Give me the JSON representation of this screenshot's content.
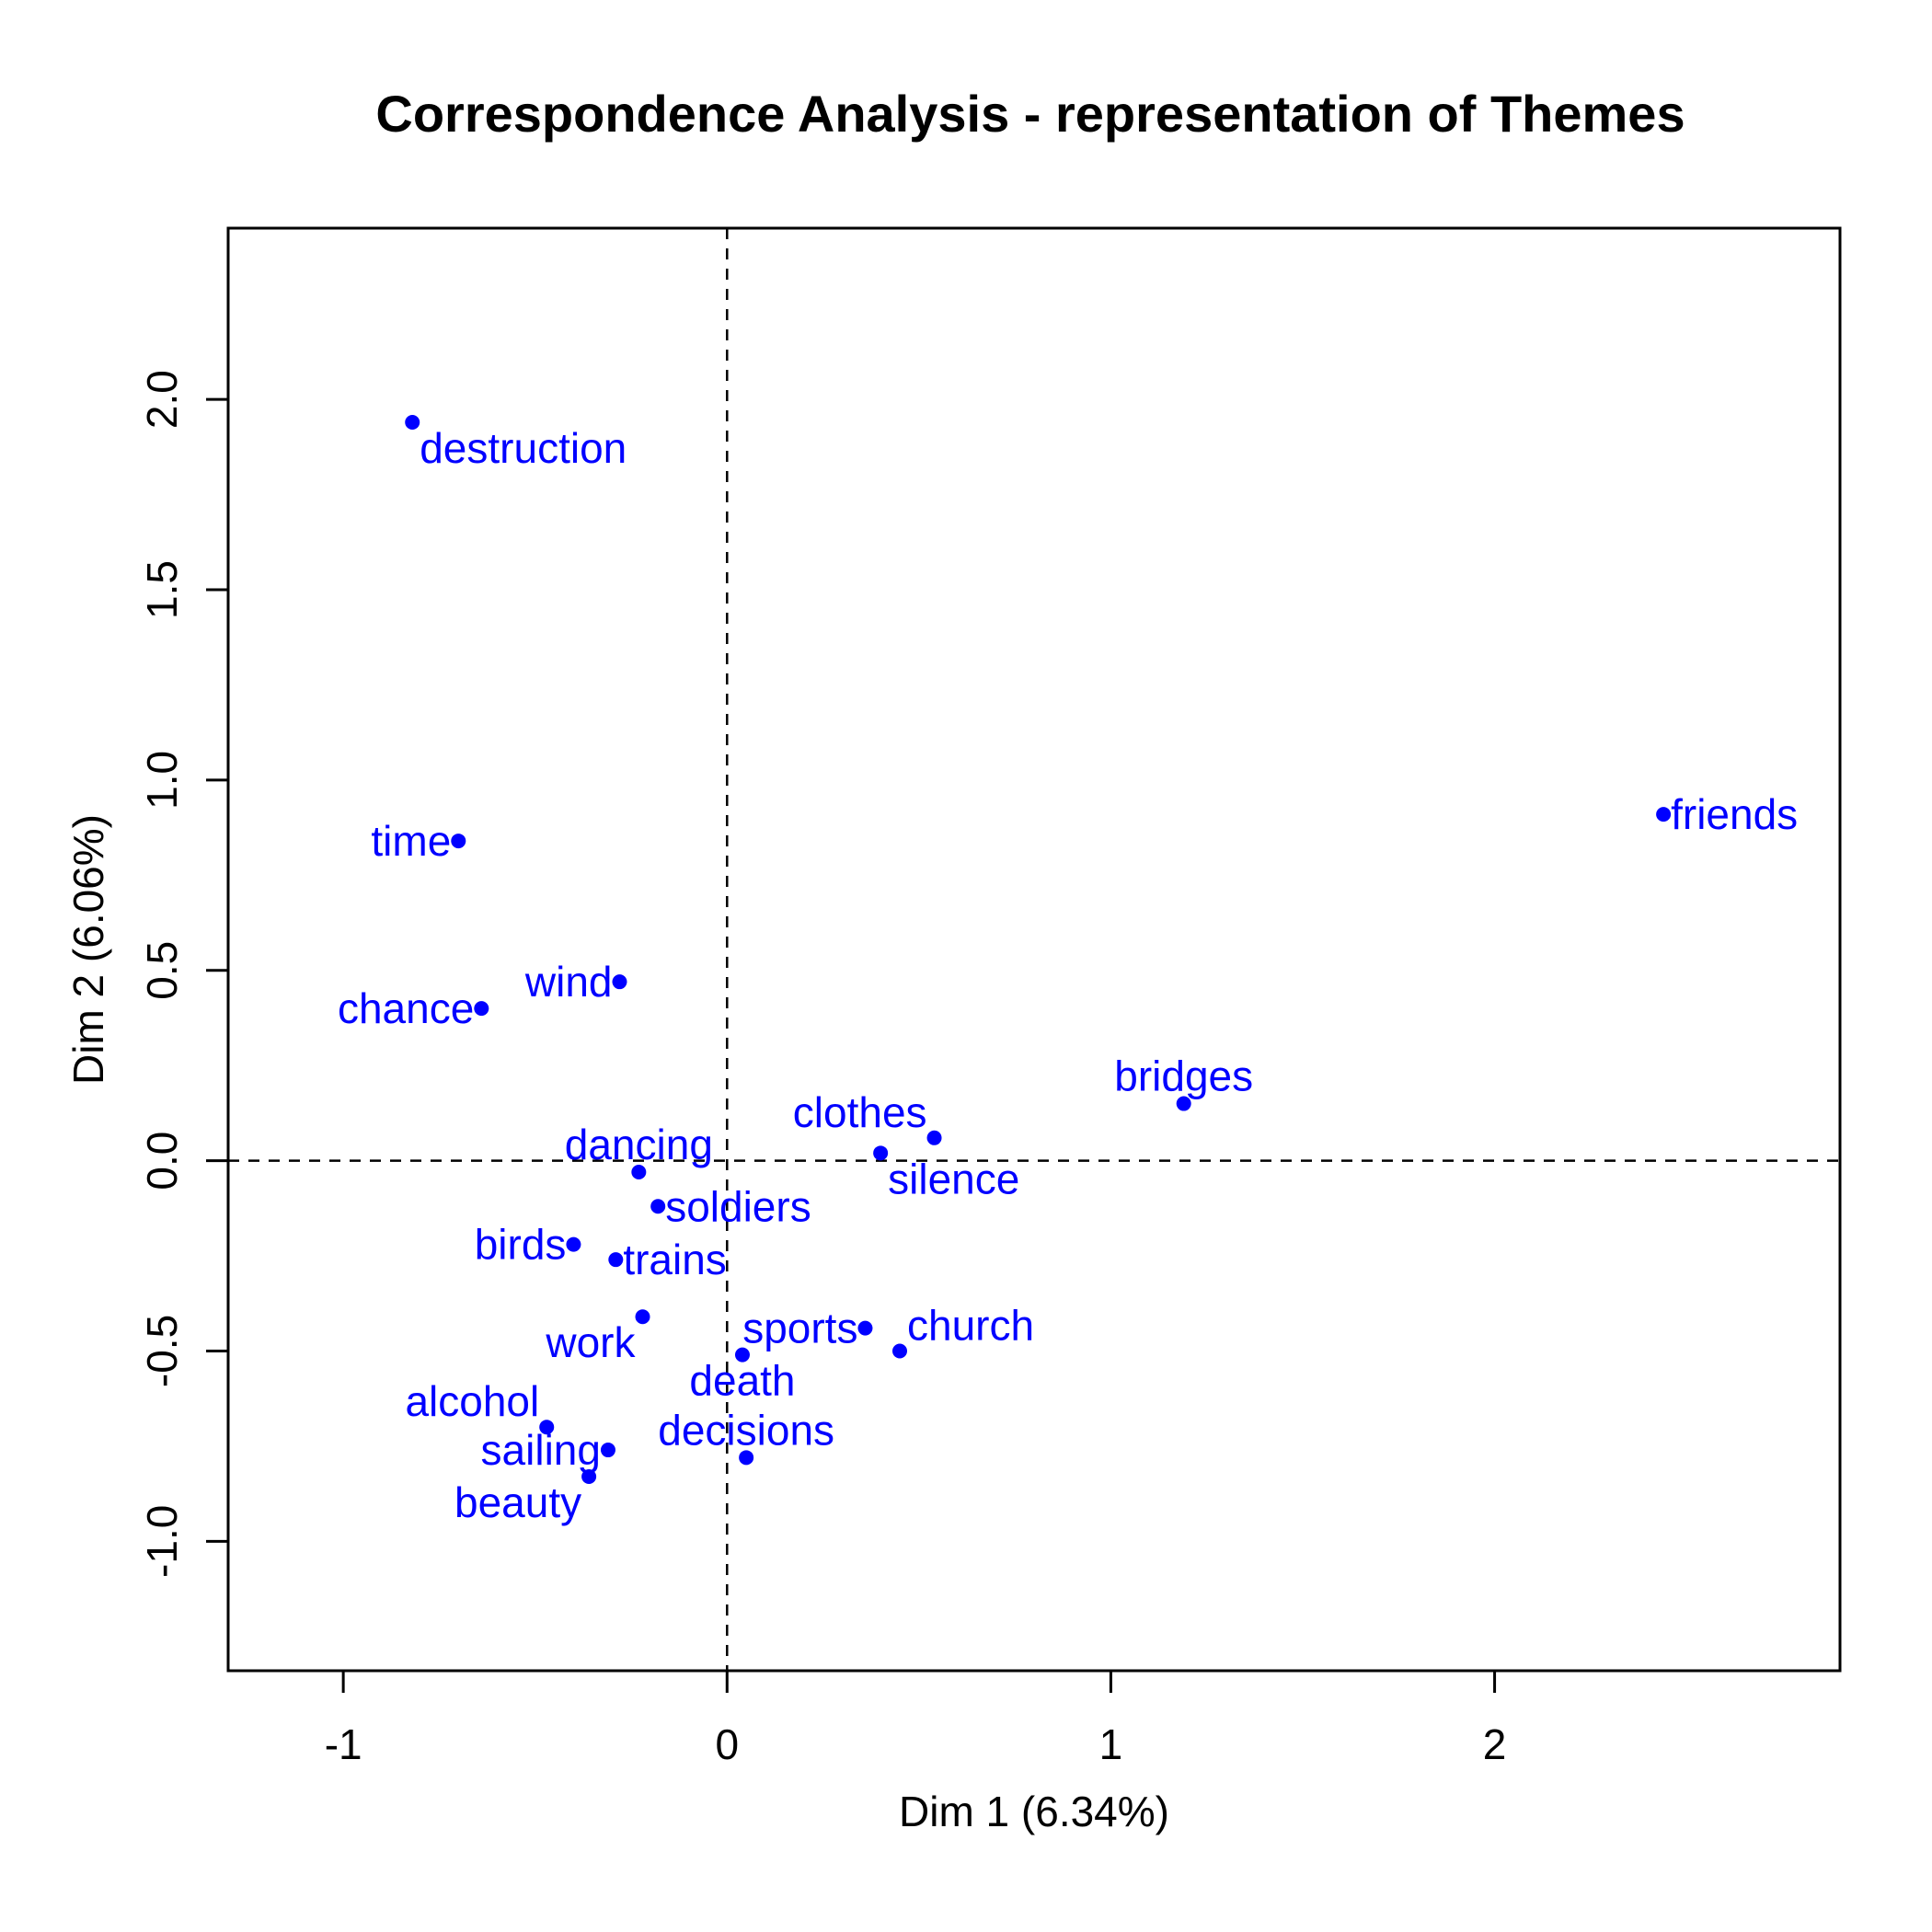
{
  "chart_data": {
    "type": "scatter",
    "title": "Correspondence Analysis - representation of Themes",
    "xlabel": "Dim 1 (6.34%)",
    "ylabel": "Dim 2 (6.06%)",
    "xlim": [
      -1.3,
      2.9
    ],
    "ylim": [
      -1.34,
      2.45
    ],
    "xticks": [
      "-1",
      "0",
      "1",
      "2"
    ],
    "yticks": [
      "-1.0",
      "-0.5",
      "0.0",
      "0.5",
      "1.0",
      "1.5",
      "2.0"
    ],
    "reference_lines": {
      "x": 0,
      "y": 0,
      "style": "dashed"
    },
    "grid": false,
    "point_color": "#0000ff",
    "points": [
      {
        "label": "destruction",
        "x": -0.82,
        "y": 1.94,
        "pos": "below-right"
      },
      {
        "label": "time",
        "x": -0.7,
        "y": 0.84,
        "pos": "left"
      },
      {
        "label": "wind",
        "x": -0.28,
        "y": 0.47,
        "pos": "left"
      },
      {
        "label": "chance",
        "x": -0.64,
        "y": 0.4,
        "pos": "left"
      },
      {
        "label": "friends",
        "x": 2.44,
        "y": 0.91,
        "pos": "right"
      },
      {
        "label": "bridges",
        "x": 1.19,
        "y": 0.15,
        "pos": "above"
      },
      {
        "label": "clothes",
        "x": 0.54,
        "y": 0.06,
        "pos": "above-left"
      },
      {
        "label": "silence",
        "x": 0.4,
        "y": 0.02,
        "pos": "below-right"
      },
      {
        "label": "dancing",
        "x": -0.23,
        "y": -0.03,
        "pos": "above"
      },
      {
        "label": "soldiers",
        "x": -0.18,
        "y": -0.12,
        "pos": "right"
      },
      {
        "label": "birds",
        "x": -0.4,
        "y": -0.22,
        "pos": "left"
      },
      {
        "label": "trains",
        "x": -0.29,
        "y": -0.26,
        "pos": "right"
      },
      {
        "label": "work",
        "x": -0.22,
        "y": -0.41,
        "pos": "below-left"
      },
      {
        "label": "sports",
        "x": 0.36,
        "y": -0.44,
        "pos": "left"
      },
      {
        "label": "church",
        "x": 0.45,
        "y": -0.5,
        "pos": "above-right"
      },
      {
        "label": "death",
        "x": 0.04,
        "y": -0.51,
        "pos": "below"
      },
      {
        "label": "alcohol",
        "x": -0.47,
        "y": -0.7,
        "pos": "above-left"
      },
      {
        "label": "sailing",
        "x": -0.31,
        "y": -0.76,
        "pos": "left"
      },
      {
        "label": "decisions",
        "x": 0.05,
        "y": -0.78,
        "pos": "above"
      },
      {
        "label": "beauty",
        "x": -0.36,
        "y": -0.83,
        "pos": "below-left"
      }
    ]
  }
}
